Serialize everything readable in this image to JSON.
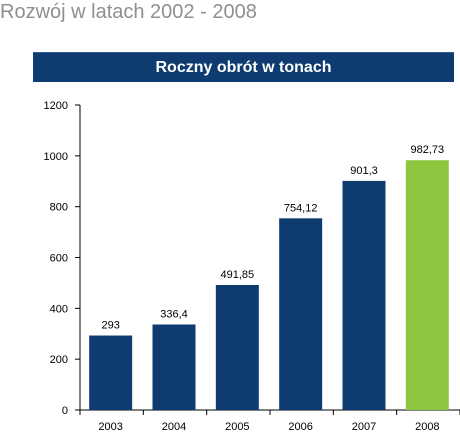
{
  "page": {
    "title": "Rozwój w latach 2002 - 2008"
  },
  "chart_data": {
    "type": "bar",
    "title": "Roczny obrót w tonach",
    "xlabel": "",
    "ylabel": "",
    "categories": [
      "2003",
      "2004",
      "2005",
      "2006",
      "2007",
      "2008"
    ],
    "values": [
      293,
      336.4,
      491.85,
      754.12,
      901.3,
      982.73
    ],
    "data_labels": [
      "293",
      "336,4",
      "491,85",
      "754,12",
      "901,3",
      "982,73"
    ],
    "yticks": [
      0,
      200,
      400,
      600,
      800,
      1000,
      1200
    ],
    "ylim": [
      0,
      1200
    ],
    "grid": false,
    "legend": "none",
    "colors": {
      "bar": "#0e3c70",
      "highlight_bar": "#8dc63f",
      "banner": "#0e3c70",
      "title_text": "#8f8f8f",
      "axis": "#000000"
    },
    "highlight_category": "2008"
  }
}
